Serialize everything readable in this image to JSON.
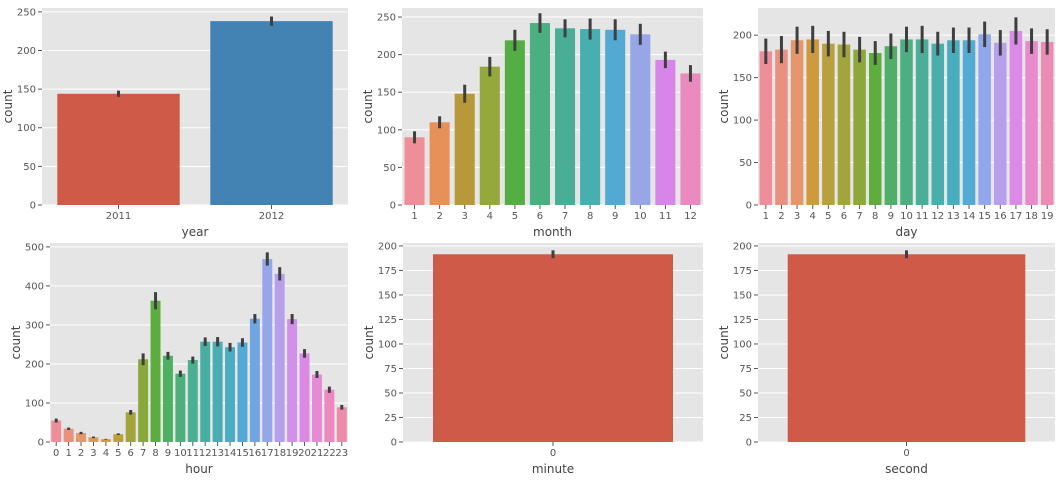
{
  "chart_data": [
    {
      "type": "bar",
      "xlabel": "year",
      "ylabel": "count",
      "categories": [
        "2011",
        "2012"
      ],
      "values": [
        144,
        238
      ],
      "err": [
        4,
        6
      ],
      "colors": [
        "#CE5A47",
        "#4283B3"
      ],
      "ylim": [
        0,
        255
      ],
      "yticks": [
        0,
        50,
        100,
        150,
        200,
        250
      ],
      "grid": true
    },
    {
      "type": "bar",
      "xlabel": "month",
      "ylabel": "count",
      "categories": [
        "1",
        "2",
        "3",
        "4",
        "5",
        "6",
        "7",
        "8",
        "9",
        "10",
        "11",
        "12"
      ],
      "values": [
        90,
        110,
        148,
        184,
        219,
        242,
        235,
        234,
        233,
        227,
        193,
        175
      ],
      "err": [
        8,
        8,
        12,
        13,
        14,
        13,
        12,
        14,
        14,
        14,
        11,
        11
      ],
      "colors": [
        "#EE8E98",
        "#E8905A",
        "#B8993A",
        "#95A83C",
        "#55AE43",
        "#4CAF80",
        "#4AAE97",
        "#48AEB0",
        "#52A9D2",
        "#97A6E7",
        "#D785E9",
        "#EA8ABF"
      ],
      "ylim": [
        0,
        262
      ],
      "yticks": [
        0,
        50,
        100,
        150,
        200,
        250
      ],
      "grid": true
    },
    {
      "type": "bar",
      "xlabel": "day",
      "ylabel": "count",
      "categories": [
        "1",
        "2",
        "3",
        "4",
        "5",
        "6",
        "7",
        "8",
        "9",
        "10",
        "11",
        "12",
        "13",
        "14",
        "15",
        "16",
        "17",
        "18",
        "19"
      ],
      "values": [
        181,
        183,
        194,
        195,
        190,
        189,
        183,
        179,
        187,
        195,
        195,
        190,
        194,
        194,
        201,
        191,
        205,
        193,
        192
      ],
      "err": [
        15,
        16,
        16,
        16,
        15,
        15,
        15,
        14,
        15,
        15,
        16,
        14,
        15,
        15,
        15,
        15,
        16,
        15,
        15
      ],
      "colors": [
        "#EE8E98",
        "#E99180",
        "#E5966A",
        "#CD9A3E",
        "#B7A03D",
        "#A2A43C",
        "#8DA73D",
        "#5DAE3E",
        "#50AF66",
        "#4CAF84",
        "#4AAE99",
        "#49AEAC",
        "#4AADBF",
        "#53AAD5",
        "#90A7E9",
        "#B79FEB",
        "#DC8AE8",
        "#E98ACD",
        "#EC8CB5"
      ],
      "ylim": [
        0,
        232
      ],
      "yticks": [
        0,
        50,
        100,
        150,
        200
      ],
      "grid": true
    },
    {
      "type": "bar",
      "xlabel": "hour",
      "ylabel": "count",
      "categories": [
        "0",
        "1",
        "2",
        "3",
        "4",
        "5",
        "6",
        "7",
        "8",
        "9",
        "10",
        "11",
        "12",
        "13",
        "14",
        "15",
        "16",
        "17",
        "18",
        "19",
        "20",
        "21",
        "22",
        "23"
      ],
      "values": [
        55,
        34,
        23,
        12,
        7,
        20,
        76,
        212,
        362,
        221,
        175,
        210,
        257,
        257,
        243,
        255,
        316,
        469,
        431,
        315,
        227,
        173,
        134,
        89
      ],
      "err": [
        5,
        3,
        3,
        2,
        1,
        2,
        6,
        15,
        22,
        10,
        8,
        9,
        11,
        12,
        11,
        11,
        12,
        17,
        17,
        13,
        11,
        9,
        8,
        6
      ],
      "colors": [
        "#EE8E98",
        "#EB907C",
        "#E5966A",
        "#DC9A54",
        "#CF9D3D",
        "#BBA03C",
        "#A3A43C",
        "#88A83C",
        "#5BAE3E",
        "#4FAF62",
        "#4CAF7C",
        "#4BAF90",
        "#49AEA2",
        "#49AEB3",
        "#4BADC3",
        "#52A9D4",
        "#6FA6E2",
        "#96A6EA",
        "#B7A0EB",
        "#D190EA",
        "#DC89E6",
        "#E68AD5",
        "#EA8AC1",
        "#EC8BAA"
      ],
      "ylim": [
        0,
        510
      ],
      "yticks": [
        0,
        100,
        200,
        300,
        400,
        500
      ],
      "grid": true
    },
    {
      "type": "bar",
      "xlabel": "minute",
      "ylabel": "count",
      "categories": [
        "0"
      ],
      "values": [
        191.5
      ],
      "err": [
        4
      ],
      "colors": [
        "#CE5A47"
      ],
      "ylim": [
        0,
        203
      ],
      "yticks": [
        0,
        25,
        50,
        75,
        100,
        125,
        150,
        175,
        200
      ],
      "grid": true
    },
    {
      "type": "bar",
      "xlabel": "second",
      "ylabel": "count",
      "categories": [
        "0"
      ],
      "values": [
        191.5
      ],
      "err": [
        4
      ],
      "colors": [
        "#CE5A47"
      ],
      "ylim": [
        0,
        203
      ],
      "yticks": [
        0,
        25,
        50,
        75,
        100,
        125,
        150,
        175,
        200
      ],
      "grid": true
    }
  ]
}
